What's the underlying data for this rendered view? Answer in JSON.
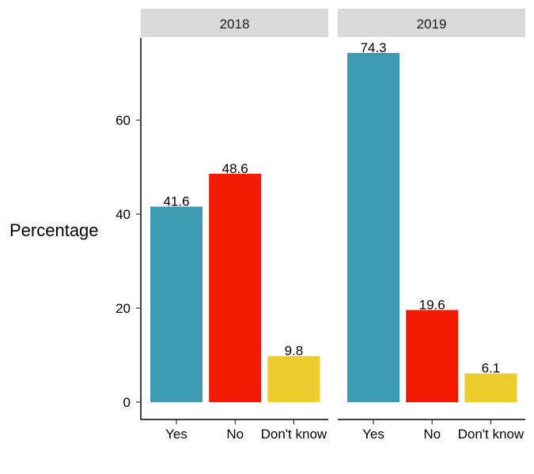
{
  "chart_data": {
    "type": "bar",
    "ylabel": "Percentage",
    "xlabel": "",
    "categories": [
      "Yes",
      "No",
      "Don't know"
    ],
    "colors": {
      "Yes": "#3C9AB2",
      "No": "#F21A00",
      "Don't know": "#EBCC2A"
    },
    "ylim": [
      0,
      77.5
    ],
    "yticks": [
      0,
      20,
      40,
      60
    ],
    "grid": false,
    "legend": "none",
    "panel_strip_color": "#D9D9D9",
    "panels": [
      {
        "title": "2018",
        "values": [
          41.6,
          48.6,
          9.8
        ],
        "labels": [
          "41.6",
          "48.6",
          "9.8"
        ]
      },
      {
        "title": "2019",
        "values": [
          74.3,
          19.6,
          6.1
        ],
        "labels": [
          "74.3",
          "19.6",
          "6.1"
        ]
      }
    ]
  }
}
